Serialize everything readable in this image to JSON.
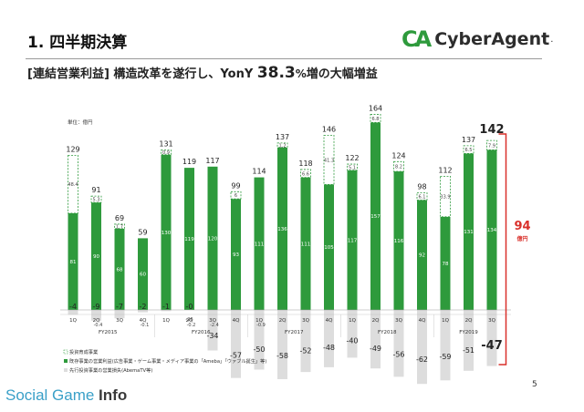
{
  "header": {
    "title": "1. 四半期決算",
    "logo_mark": "CA",
    "logo_text": "CyberAgent",
    "logo_dot": "."
  },
  "subtitle": {
    "bracket": "[連結営業利益]",
    "text": "構造改革を遂行し、YonY",
    "growth_value": "38.3",
    "growth_unit": "%",
    "suffix": "増の大幅増益"
  },
  "page_number": "5",
  "watermark": {
    "part1": "Social Game ",
    "part2": "Info"
  },
  "colors": {
    "existing_business": "#2e9a3c",
    "new_business": "#ffffff",
    "investment_loss": "#dddddd",
    "bracket": "#d9302b"
  },
  "chart_data": {
    "type": "bar",
    "unit_label": "単位：億円",
    "quarters": [
      "1Q",
      "2Q",
      "3Q",
      "4Q",
      "1Q",
      "2Q",
      "3Q",
      "4Q",
      "1Q",
      "2Q",
      "3Q",
      "4Q",
      "1Q",
      "2Q",
      "3Q",
      "4Q",
      "1Q",
      "2Q",
      "3Q"
    ],
    "fiscal_years": [
      "FY2015",
      "FY2016",
      "FY2017",
      "FY2018",
      "FY2019"
    ],
    "totals": [
      129,
      91,
      69,
      59,
      131,
      119,
      117,
      99,
      114,
      137,
      118,
      146,
      122,
      164,
      124,
      98,
      112,
      137,
      142
    ],
    "series": [
      {
        "name": "既存事業の営業利益(広告事業・ゲーム事業・メディア事業の「Ameba」「ウァブル誕生」等)",
        "values": [
          81,
          90,
          68,
          60,
          130,
          119,
          120,
          93,
          111,
          136,
          111,
          105,
          117,
          157,
          116,
          92,
          78,
          131,
          134
        ],
        "labels": [
          "81",
          "90",
          "68",
          "60",
          "130",
          "119",
          "120",
          "93",
          "111",
          "136",
          "111",
          "105",
          "117",
          "157",
          "116",
          "92",
          "78",
          "131",
          "134"
        ]
      },
      {
        "name": "投資育成事業",
        "values": [
          48.4,
          5.3,
          1.7,
          0,
          0.9,
          0,
          0,
          6,
          0,
          1.2,
          6.6,
          41.3,
          5.1,
          6.8,
          8.2,
          6.1,
          33.9,
          6.5,
          7.9
        ],
        "labels": [
          "48.4",
          "5.3",
          "1.7",
          "",
          "0.9",
          "",
          "",
          "6",
          "",
          "1.2",
          "6.6",
          "41.3",
          "5.1",
          "6.8",
          "8.2",
          "6.1",
          "33.9",
          "6.5",
          "7.9"
        ]
      },
      {
        "name": "先行投資事業の営業損失(AbemaTV等)",
        "values": [
          -4,
          -9,
          -7,
          -2,
          -1,
          0,
          -34,
          -57,
          -50,
          -58,
          -52,
          -48,
          -40,
          -49,
          -56,
          -62,
          -59,
          -51,
          -47
        ],
        "labels": [
          "-4",
          "-9",
          "-7",
          "-2",
          "-1",
          "-0",
          "-34",
          "-57",
          "-50",
          "-58",
          "-52",
          "-48",
          "-40",
          "-49",
          "-56",
          "-62",
          "-59",
          "-51",
          "-47"
        ]
      }
    ],
    "small_labels": [
      "",
      "-0.4",
      "",
      "-0.1",
      "",
      "-0.2",
      "-2.4",
      "",
      "-0.9",
      "",
      "",
      "",
      "",
      "",
      "",
      "",
      "",
      "",
      ""
    ],
    "small_labels_2": [
      "",
      "",
      "",
      "",
      "",
      "-26",
      "",
      "",
      "",
      "",
      "",
      "",
      "",
      "",
      "",
      "",
      "",
      "",
      ""
    ],
    "highlight": {
      "top_value": "142",
      "bottom_value": "-47",
      "result_value": "94",
      "result_unit": "億円"
    }
  }
}
